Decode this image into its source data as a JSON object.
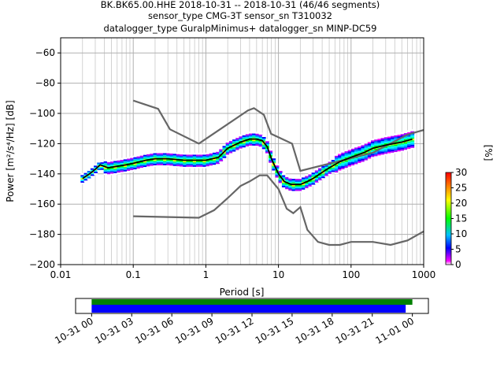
{
  "title": {
    "line1": "BK.BK65.00.HHE   2018-10-31 -- 2018-10-31  (46/46 segments)",
    "line2": "sensor_type CMG-3T sensor_sn T310032",
    "line3": "datalogger_type GuralpMinimus+ datalogger_sn MINP-DC59"
  },
  "chart_data": {
    "type": "heatmap",
    "xlabel": "Period [s]",
    "ylabel": "Power [m²/s⁴/Hz] [dB]",
    "xscale": "log",
    "xlim": [
      0.01,
      1000
    ],
    "ylim": [
      -200,
      -50
    ],
    "x_ticks": [
      0.01,
      0.1,
      1,
      10,
      100,
      1000
    ],
    "x_tick_labels": [
      "0.01",
      "0.1",
      "1",
      "10",
      "100",
      "1000"
    ],
    "y_ticks": [
      -200,
      -180,
      -160,
      -140,
      -120,
      -100,
      -80,
      -60
    ],
    "y_tick_labels": [
      "−200",
      "−180",
      "−160",
      "−140",
      "−120",
      "−100",
      "−80",
      "−60"
    ],
    "grid": true,
    "nhnm": {
      "periods": [
        0.1,
        0.8,
        1.3,
        2,
        3,
        4,
        5.5,
        7,
        10,
        13,
        16,
        20,
        25,
        35,
        50,
        70,
        100,
        200,
        350,
        600,
        1000
      ],
      "db": [
        -168,
        -169,
        -164,
        -156,
        -148,
        -145,
        -141,
        -141,
        -150,
        -163,
        -166,
        -162,
        -177,
        -185,
        -187,
        -187,
        -185,
        -185,
        -187,
        -184,
        -178
      ]
    },
    "nlnm": {
      "periods": [
        0.1,
        0.22,
        0.32,
        0.8,
        3.8,
        4.6,
        6.3,
        7.9,
        15.4,
        20,
        200,
        600,
        1000
      ],
      "db": [
        -91.5,
        -97,
        -110.5,
        -120,
        -98,
        -96.5,
        -101,
        -113.5,
        -120,
        -138,
        -126,
        -114,
        -111
      ]
    },
    "mode": {
      "periods": [
        0.02,
        0.025,
        0.03,
        0.035,
        0.045,
        0.06,
        0.08,
        0.1,
        0.15,
        0.2,
        0.3,
        0.5,
        0.7,
        1,
        1.5,
        2,
        3,
        4,
        5,
        6,
        7,
        8,
        10,
        12,
        15,
        20,
        25,
        30,
        40,
        50,
        70,
        100,
        150,
        200,
        300,
        500,
        700
      ],
      "db": [
        -143,
        -140,
        -137,
        -134,
        -136,
        -135,
        -134,
        -133,
        -131,
        -130,
        -130,
        -131,
        -131,
        -131,
        -129,
        -123,
        -119,
        -117,
        -117,
        -118,
        -122,
        -130,
        -140,
        -145,
        -147,
        -147,
        -145,
        -143,
        -139,
        -136,
        -132,
        -129,
        -126,
        -123,
        -121,
        -119,
        -117
      ]
    },
    "colorbar": {
      "label": "[%]",
      "min": 0,
      "max": 30,
      "ticks": [
        0,
        5,
        10,
        15,
        20,
        25,
        30
      ],
      "tick_labels": [
        "0",
        "5",
        "10",
        "15",
        "20",
        "25",
        "30"
      ]
    },
    "timeline": {
      "tick_labels": [
        "10-31 00",
        "10-31 03",
        "10-31 06",
        "10-31 09",
        "10-31 12",
        "10-31 15",
        "10-31 18",
        "10-31 21",
        "11-01 00"
      ],
      "tick_hours": [
        0,
        3,
        6,
        9,
        12,
        15,
        18,
        21,
        24
      ],
      "range_hours": [
        -1.2,
        25.2
      ],
      "green_span_hours": [
        0,
        24
      ],
      "blue_span_hours": [
        0,
        23.5
      ]
    },
    "colors": {
      "noise_model": "#666666",
      "mode_line": "#000000",
      "timeline_green": "#008000",
      "timeline_blue": "#0000ff"
    }
  }
}
